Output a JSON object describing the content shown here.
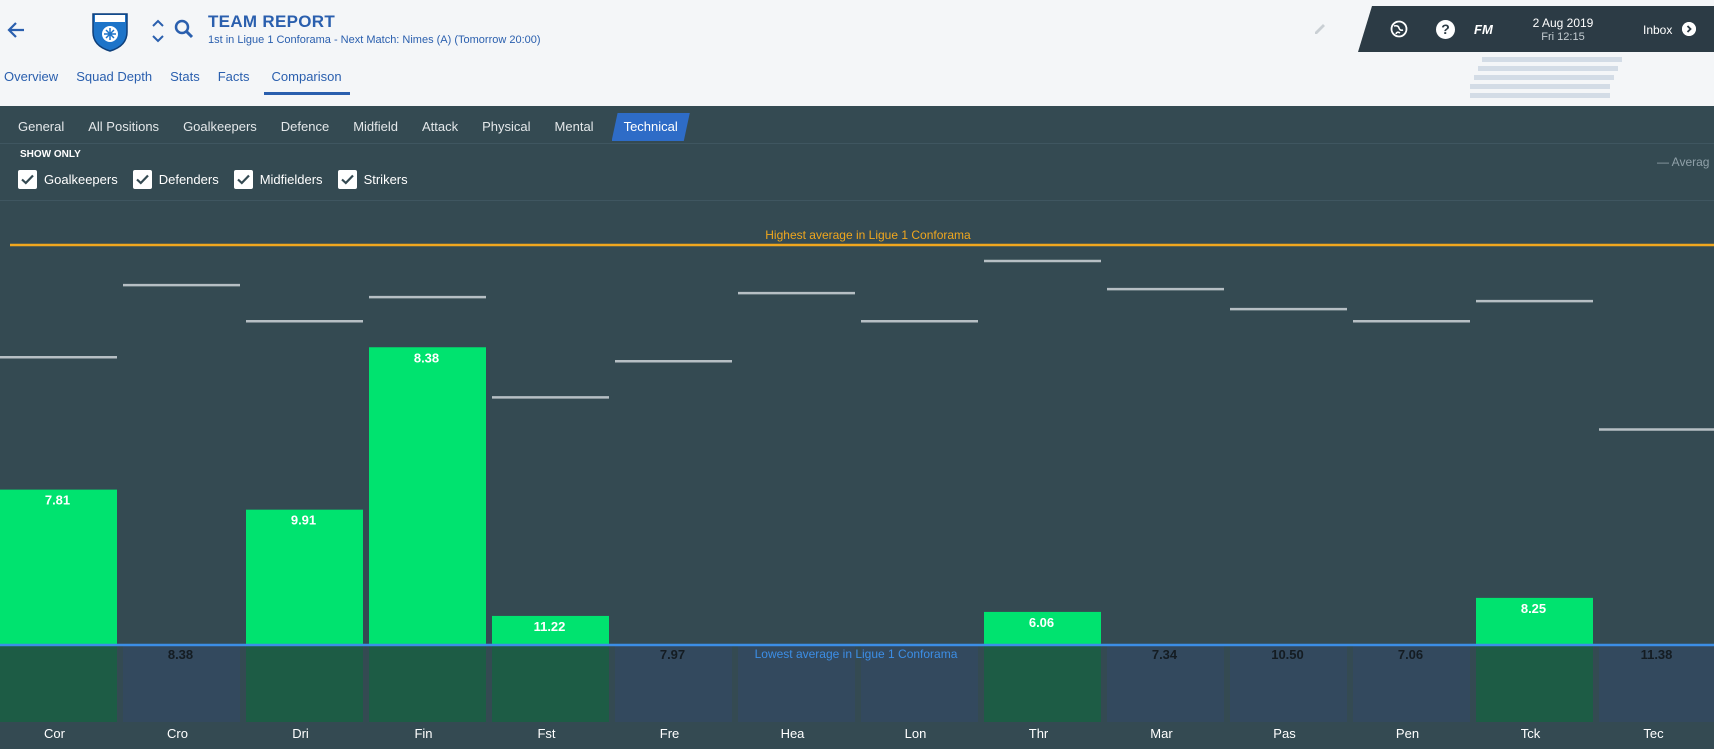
{
  "header": {
    "title": "TEAM REPORT",
    "subtitle": "1st in Ligue 1 Conforama - Next Match: Nimes (A) (Tomorrow 20:00)",
    "tabs": [
      "Overview",
      "Squad Depth",
      "Stats",
      "Facts",
      "Comparison"
    ],
    "active_tab": "Comparison"
  },
  "topbar": {
    "fm": "FM",
    "date": "2 Aug 2019",
    "time": "Fri 12:15",
    "inbox": "Inbox",
    "help": "?"
  },
  "subtabs": [
    "General",
    "All Positions",
    "Goalkeepers",
    "Defence",
    "Midfield",
    "Attack",
    "Physical",
    "Mental",
    "Technical"
  ],
  "active_subtab": "Technical",
  "filters": {
    "title": "SHOW ONLY",
    "items": [
      {
        "label": "Goalkeepers",
        "checked": true
      },
      {
        "label": "Defenders",
        "checked": true
      },
      {
        "label": "Midfielders",
        "checked": true
      },
      {
        "label": "Strikers",
        "checked": true
      }
    ]
  },
  "legend": {
    "average": "— Averag"
  },
  "colors": {
    "good": "#00e36f",
    "good_dim": "#1d5c45",
    "bad": "#33495e",
    "highest": "#f0a71e",
    "lowest": "#3c8ee6",
    "header_blue": "#2a5fae"
  },
  "chart_data": {
    "type": "bar",
    "highest_label": "Highest average in Ligue 1 Conforama",
    "lowest_label": "Lowest average in Ligue 1 Conforama",
    "categories": [
      "Cor",
      "Cro",
      "Dri",
      "Fin",
      "Fst",
      "Fre",
      "Hea",
      "Lon",
      "Thr",
      "Mar",
      "Pas",
      "Pen",
      "Tck",
      "Tec"
    ],
    "values": [
      "7.81",
      "8.38",
      "9.91",
      "8.38",
      "11.22",
      "7.97",
      "",
      "",
      "6.06",
      "7.34",
      "10.50",
      "7.06",
      "8.25",
      "11.38"
    ],
    "above_lowest": [
      true,
      false,
      true,
      true,
      true,
      false,
      false,
      false,
      true,
      false,
      false,
      false,
      true,
      false
    ],
    "scale": {
      "lowest": 0,
      "highest": 10
    },
    "bar_level": [
      3.9,
      0,
      3.4,
      7.45,
      0.75,
      0,
      0,
      0,
      0.85,
      0,
      0,
      0,
      1.2,
      0
    ],
    "average_level": [
      7.2,
      9.0,
      8.1,
      8.7,
      6.2,
      7.1,
      8.8,
      8.1,
      9.6,
      8.9,
      8.4,
      8.1,
      8.6,
      5.4
    ]
  }
}
